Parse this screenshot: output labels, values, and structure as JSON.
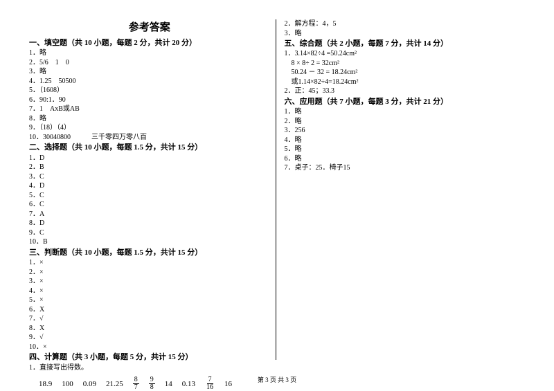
{
  "title": "参考答案",
  "left": {
    "sec1_head": "一、填空题（共 10 小题，每题 2 分，共计 20 分）",
    "sec1": [
      "1．略",
      "2．5/6　1　0",
      "3．略",
      "4．1.25　50500",
      "5．（1608）",
      "6．90:1．90",
      "7．1　AxB或AB",
      "8．略",
      "9．（18）（4）",
      "10．30040800　　　三千零四万零八百"
    ],
    "sec2_head": "二、选择题（共 10 小题，每题 1.5 分，共计 15 分）",
    "sec2": [
      "1．D",
      "2．B",
      "3．C",
      "4．D",
      "5．C",
      "6．C",
      "7．A",
      "8．D",
      "9．C",
      "10．B"
    ],
    "sec3_head": "三、判断题（共 10 小题，每题 1.5 分，共计 15 分）",
    "sec3": [
      "1．×",
      "2．×",
      "3．×",
      "4．×",
      "5．×",
      "6．X",
      "7．√",
      "8．X",
      "9．√",
      "10．×"
    ],
    "sec4_head": "四、计算题（共 3 小题，每题 5 分，共计 15 分）",
    "sec4_line": "1．直接写出得数。",
    "math": {
      "v1": "18.9",
      "v2": "100",
      "v3": "0.09",
      "v4": "21.25",
      "f1n": "8",
      "f1d": "7",
      "f2n": "9",
      "f2d": "8",
      "v5": "14",
      "v6": "0.13",
      "f3n": "7",
      "f3d": "16",
      "v7": "16"
    }
  },
  "right": {
    "pre": [
      "2．解方程：4，5",
      "3．略"
    ],
    "sec5_head": "五、综合题（共 2 小题，每题 7 分，共计 14 分）",
    "sec5": [
      "1．3.14×82÷4 =50.24cm²",
      "　8 × 8÷ 2 = 32cm²",
      "　50.24 － 32 = 18.24cm²",
      "　或1.14×82÷4=18.24cm²",
      "2．正：45；33.3"
    ],
    "sec6_head": "六、应用题（共 7 小题，每题 3 分，共计 21 分）",
    "sec6": [
      "1．略",
      "2．略",
      "3．256",
      "4．略",
      "5．略",
      "6．略",
      "7．桌子：25．椅子15"
    ]
  },
  "footer": "第 3 页 共 3 页"
}
